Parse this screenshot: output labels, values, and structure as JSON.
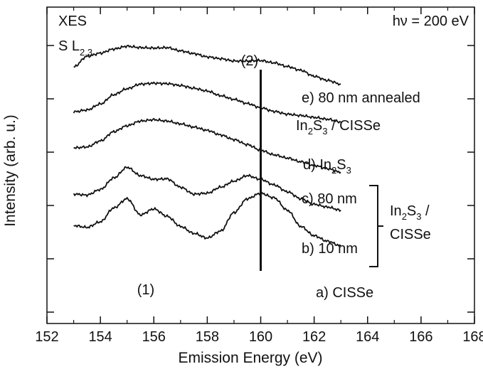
{
  "chart_data": {
    "type": "line",
    "title": "",
    "xlabel": "Emission Energy (eV)",
    "ylabel": "Intensity (arb. u.)",
    "xlim": [
      152,
      168
    ],
    "x_ticks": [
      152,
      154,
      156,
      158,
      160,
      162,
      164,
      166,
      168
    ],
    "y_ticks": [
      "",
      "",
      "",
      "",
      "",
      ""
    ],
    "grid": false,
    "legend": "none",
    "annotations": {
      "method": "XES",
      "edge_main": "S L",
      "edge_sub": "2,3",
      "photon_energy": "hν = 200 eV",
      "marker_2": "(2)",
      "marker_1": "(1)",
      "marker_line_x": 160
    },
    "series_labels": {
      "e_line1": "e) 80 nm annealed",
      "e_line2_pre": "In",
      "e_line2_sub1": "2",
      "e_line2_mid": "S",
      "e_line2_sub2": "3",
      "e_line2_post": " / CISSe",
      "d_pre": "d) In",
      "d_sub1": "2",
      "d_mid": "S",
      "d_sub2": "3",
      "c": "c) 80 nm",
      "b": "b) 10 nm",
      "a": "a) CISSe",
      "bracket_line1_pre": "In",
      "bracket_sub1": "2",
      "bracket_mid": "S",
      "bracket_sub2": "3",
      "bracket_line1_post": " /",
      "bracket_line2": "CISSe"
    },
    "series": [
      {
        "name": "e) 80 nm annealed In2S3 / CISSe",
        "x": [
          153,
          153.5,
          154,
          154.5,
          155,
          155.5,
          156,
          156.5,
          157,
          157.5,
          158,
          158.5,
          159,
          159.5,
          160,
          160.5,
          161,
          161.5,
          162,
          162.5,
          163
        ],
        "y": [
          0.45,
          0.22,
          0.15,
          0.06,
          0.0,
          0.03,
          0.04,
          0.03,
          0.1,
          0.16,
          0.23,
          0.27,
          0.32,
          0.32,
          0.31,
          0.36,
          0.44,
          0.52,
          0.65,
          0.74,
          0.82
        ]
      },
      {
        "name": "d) In2S3",
        "x": [
          153,
          153.5,
          154,
          154.5,
          155,
          155.5,
          156,
          156.5,
          157,
          157.5,
          158,
          158.5,
          159,
          159.5,
          160,
          160.5,
          161,
          161.5,
          162,
          162.5,
          163
        ],
        "y": [
          1.42,
          1.38,
          1.25,
          1.05,
          0.92,
          0.82,
          0.8,
          0.81,
          0.85,
          0.91,
          0.97,
          1.07,
          1.15,
          1.24,
          1.33,
          1.41,
          1.47,
          1.5,
          1.54,
          1.58,
          1.64
        ]
      },
      {
        "name": "c) 80 nm In2S3 / CISSe",
        "x": [
          153,
          153.5,
          154,
          154.5,
          155,
          155.5,
          156,
          156.5,
          157,
          157.5,
          158,
          158.5,
          159,
          159.5,
          160,
          160.5,
          161,
          161.5,
          162,
          162.5,
          163
        ],
        "y": [
          2.2,
          2.18,
          2.05,
          1.85,
          1.72,
          1.62,
          1.59,
          1.62,
          1.68,
          1.75,
          1.82,
          1.92,
          2.02,
          2.13,
          2.25,
          2.35,
          2.42,
          2.5,
          2.58,
          2.65,
          2.73
        ]
      },
      {
        "name": "b) 10 nm In2S3 / CISSe",
        "x": [
          153,
          153.5,
          154,
          154.5,
          155,
          155.5,
          156,
          156.5,
          157,
          157.5,
          158,
          158.5,
          159,
          159.5,
          160,
          160.5,
          161,
          161.5,
          162,
          162.5,
          163
        ],
        "y": [
          3.2,
          3.22,
          3.1,
          2.85,
          2.62,
          2.8,
          2.88,
          2.87,
          3.05,
          3.2,
          3.18,
          3.05,
          2.92,
          2.8,
          2.88,
          3.0,
          3.15,
          3.3,
          3.42,
          3.48,
          3.55
        ]
      },
      {
        "name": "a) CISSe",
        "x": [
          153,
          153.5,
          154,
          154.5,
          155,
          155.5,
          156,
          156.5,
          157,
          157.5,
          158,
          158.5,
          159,
          159.5,
          160,
          160.5,
          161,
          161.5,
          162,
          162.5,
          163
        ],
        "y": [
          3.88,
          3.92,
          3.8,
          3.5,
          3.3,
          3.65,
          3.52,
          3.68,
          3.9,
          4.05,
          4.15,
          4.0,
          3.6,
          3.3,
          3.18,
          3.28,
          3.55,
          3.9,
          4.1,
          4.22,
          4.32
        ]
      }
    ]
  }
}
